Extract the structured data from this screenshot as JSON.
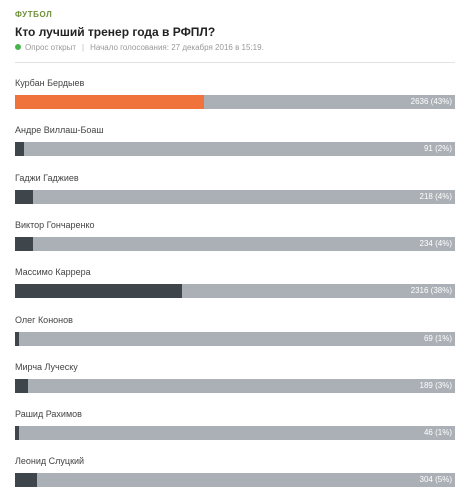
{
  "poll": {
    "category": "ФУТБОЛ",
    "title": "Кто лучший тренер года в РФПЛ?",
    "status": "Опрос открыт",
    "voting_start": "Начало голосования: 27 декабря 2016 в 15:19.",
    "colors": {
      "leader": "#f0733c",
      "fill": "#3e464c",
      "track": "#aab0b5",
      "status_dot": "#49b34f",
      "category": "#6f8f3a"
    },
    "options": [
      {
        "name": "Курбан Бердыев",
        "votes_text": "2636 (43%)",
        "percent": 43,
        "leader": true
      },
      {
        "name": "Андре Виллаш-Боаш",
        "votes_text": "91 (2%)",
        "percent": 2,
        "leader": false
      },
      {
        "name": "Гаджи Гаджиев",
        "votes_text": "218 (4%)",
        "percent": 4,
        "leader": false
      },
      {
        "name": "Виктор Гончаренко",
        "votes_text": "234 (4%)",
        "percent": 4,
        "leader": false
      },
      {
        "name": "Массимо Каррера",
        "votes_text": "2316 (38%)",
        "percent": 38,
        "leader": false
      },
      {
        "name": "Олег Кононов",
        "votes_text": "69 (1%)",
        "percent": 1,
        "leader": false
      },
      {
        "name": "Мирча Луческу",
        "votes_text": "189 (3%)",
        "percent": 3,
        "leader": false
      },
      {
        "name": "Рашид Рахимов",
        "votes_text": "46 (1%)",
        "percent": 1,
        "leader": false
      },
      {
        "name": "Леонид Слуцкий",
        "votes_text": "304 (5%)",
        "percent": 5,
        "leader": false
      }
    ]
  }
}
